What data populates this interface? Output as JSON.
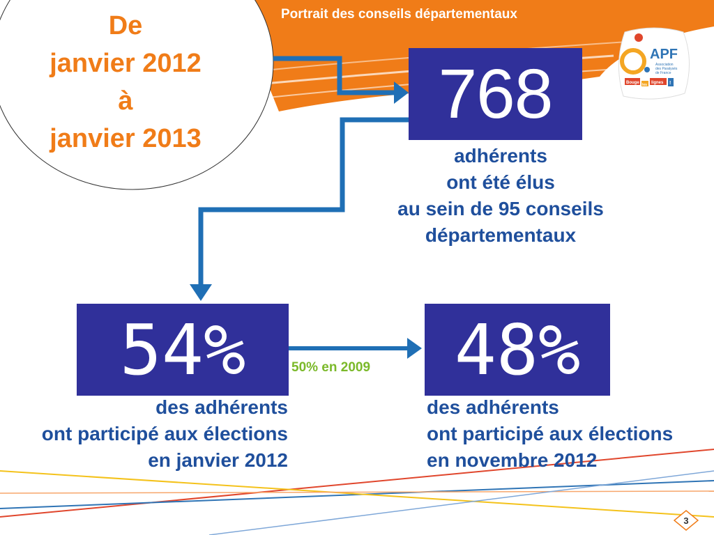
{
  "header": {
    "title": "Portrait des conseils départementaux"
  },
  "period": {
    "lines": [
      "De",
      "janvier 2012",
      "à",
      "janvier 2013"
    ]
  },
  "stats": {
    "elected": {
      "value": "768",
      "caption": [
        "adhérents",
        "ont été élus",
        "au sein de 95 conseils",
        "départementaux"
      ]
    },
    "january": {
      "value": "54%",
      "caption": [
        "des adhérents",
        "ont participé aux élections",
        "en janvier 2012"
      ]
    },
    "november": {
      "value": "48%",
      "caption": [
        "des adhérents",
        "ont participé aux élections",
        "en novembre 2012"
      ]
    },
    "note": "50% en 2009"
  },
  "logo": {
    "text": "APF",
    "subtitle": [
      "Association",
      "des Paralysés",
      "de France"
    ],
    "tagline": [
      "Bouge",
      "les",
      "lignes",
      "!"
    ]
  },
  "footer": {
    "page_number": "3"
  },
  "colors": {
    "orange": "#f07c18",
    "navy_box": "#30309a",
    "blue_text": "#1f4f9c",
    "arrow_blue": "#1f6fb5",
    "green_note": "#7bb92a"
  }
}
